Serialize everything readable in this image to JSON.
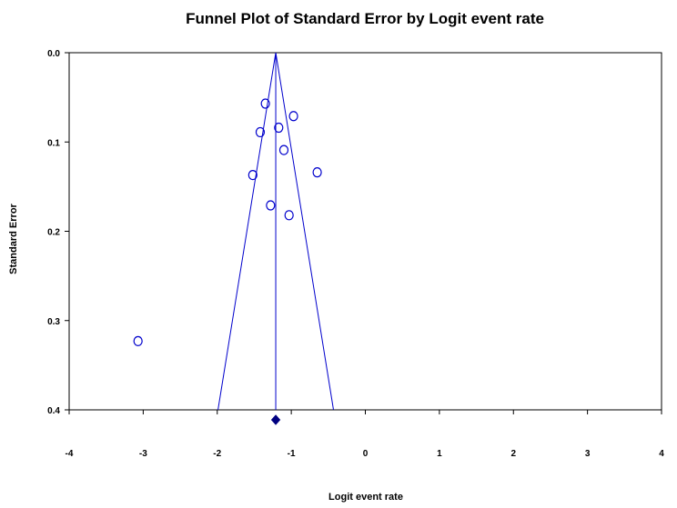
{
  "chart_data": {
    "type": "scatter",
    "title": "Funnel Plot of Standard Error by Logit event rate",
    "xlabel": "Logit event rate",
    "ylabel": "Standard Error",
    "xlim": [
      -4,
      4
    ],
    "ylim": [
      0.0,
      0.4
    ],
    "y_inverted": true,
    "grid": false,
    "x_ticks": [
      "-4",
      "-3",
      "-2",
      "-1",
      "0",
      "1",
      "2",
      "3",
      "4"
    ],
    "y_ticks": [
      "0.0",
      "0.1",
      "0.2",
      "0.3",
      "0.4"
    ],
    "series": [
      {
        "marker": "open-circle",
        "color": "#0000cc",
        "points": [
          {
            "x": -1.35,
            "y": 0.057
          },
          {
            "x": -0.97,
            "y": 0.071
          },
          {
            "x": -1.17,
            "y": 0.084
          },
          {
            "x": -1.42,
            "y": 0.089
          },
          {
            "x": -1.1,
            "y": 0.109
          },
          {
            "x": -0.65,
            "y": 0.134
          },
          {
            "x": -1.52,
            "y": 0.137
          },
          {
            "x": -1.28,
            "y": 0.171
          },
          {
            "x": -1.03,
            "y": 0.182
          },
          {
            "x": -3.07,
            "y": 0.323
          }
        ]
      }
    ],
    "pooled_estimate": {
      "x": -1.21,
      "marker": "filled-diamond",
      "color": "#000080"
    },
    "funnel": {
      "apex_x": -1.21,
      "apex_y": 0.0,
      "bottom_left_x": -1.99,
      "bottom_right_x": -0.43,
      "bottom_y": 0.4,
      "color": "#0000cc"
    }
  }
}
